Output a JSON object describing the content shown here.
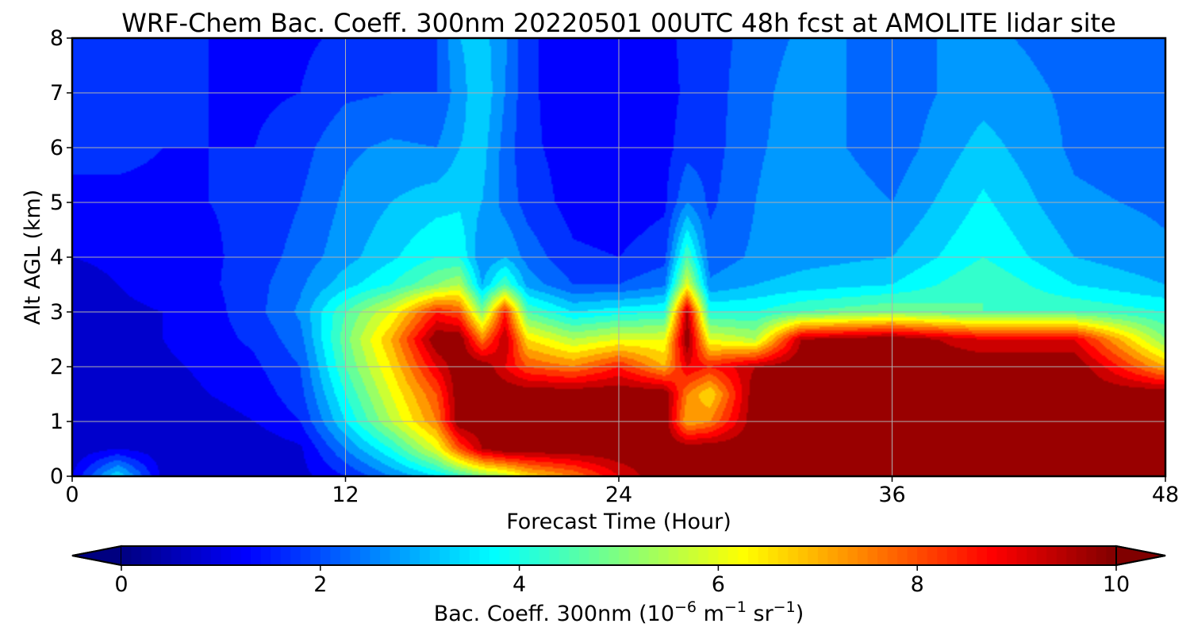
{
  "chart_data": {
    "type": "heatmap",
    "title": "WRF-Chem Bac. Coeff. 300nm  20220501 00UTC 48h fcst at AMOLITE lidar site",
    "xlabel": "Forecast Time (Hour)",
    "ylabel": "Alt AGL (km)",
    "xlim": [
      0,
      48
    ],
    "ylim": [
      0,
      8
    ],
    "xticks": [
      0,
      12,
      24,
      36,
      48
    ],
    "yticks": [
      0,
      1,
      2,
      3,
      4,
      5,
      6,
      7,
      8
    ],
    "grid": true,
    "colormap": "jet",
    "colorbar": {
      "label_main": "Bac. Coeff. 300nm  (10",
      "label_exp1": "−6",
      "label_mid": " m",
      "label_exp2": "−1",
      "label_end": " sr",
      "label_exp3": "−1",
      "label_close": ")",
      "range": [
        0,
        10
      ],
      "ticks": [
        0,
        2,
        4,
        6,
        8,
        10
      ],
      "extend": "both"
    },
    "x": [
      0,
      2,
      4,
      6,
      8,
      10,
      12,
      14,
      16,
      17,
      18,
      19,
      20,
      22,
      24,
      26,
      27,
      28,
      30,
      32,
      36,
      40,
      44,
      48
    ],
    "y": [
      0,
      0.5,
      1,
      1.5,
      2,
      2.5,
      3,
      3.5,
      4,
      5,
      6,
      7,
      8
    ],
    "z": [
      [
        1.0,
        3.5,
        0.8,
        0.6,
        0.5,
        0.8,
        1.5,
        2.5,
        3.5,
        4.2,
        5.0,
        5.5,
        6.5,
        7.5,
        9.0,
        10,
        10,
        10,
        10,
        10,
        10,
        10,
        10,
        10
      ],
      [
        0.6,
        1.0,
        0.7,
        0.6,
        0.6,
        0.9,
        2.5,
        4.0,
        6.0,
        8.0,
        9.5,
        10,
        10,
        10,
        10,
        10,
        10,
        10,
        10,
        10,
        10,
        10,
        10,
        10
      ],
      [
        0.8,
        0.9,
        0.7,
        0.8,
        1.0,
        1.5,
        3.5,
        5.5,
        7.5,
        10,
        10,
        10,
        10,
        10,
        10,
        10,
        7.0,
        7.5,
        10,
        10,
        10,
        10,
        10,
        10
      ],
      [
        0.7,
        0.9,
        0.8,
        1.0,
        1.2,
        1.8,
        4.0,
        6.0,
        8.0,
        10,
        10,
        10,
        10,
        10,
        10,
        10,
        7.5,
        6.5,
        10,
        10,
        10,
        10,
        10,
        10
      ],
      [
        0.6,
        0.9,
        0.9,
        1.1,
        1.4,
        2.0,
        4.5,
        6.5,
        9.0,
        10,
        10,
        9.0,
        8.0,
        7.5,
        8.5,
        7.0,
        9.0,
        8.5,
        9.5,
        10,
        10,
        10,
        10,
        7.0
      ],
      [
        0.6,
        0.9,
        1.0,
        1.3,
        1.6,
        2.3,
        4.8,
        7.0,
        10,
        10,
        7.5,
        9.5,
        6.5,
        5.5,
        6.0,
        6.0,
        10,
        6.0,
        5.5,
        9.5,
        10,
        9.0,
        9.0,
        5.0
      ],
      [
        0.6,
        0.9,
        1.0,
        1.3,
        1.8,
        2.6,
        4.5,
        6.0,
        8.5,
        8.0,
        5.0,
        8.5,
        4.5,
        3.5,
        3.8,
        4.0,
        9.5,
        4.0,
        4.0,
        4.5,
        5.0,
        4.5,
        4.5,
        4.0
      ],
      [
        0.8,
        1.0,
        1.2,
        1.4,
        1.8,
        2.4,
        3.3,
        4.0,
        5.0,
        5.5,
        3.0,
        4.5,
        2.8,
        2.0,
        2.0,
        2.4,
        6.0,
        2.6,
        3.0,
        3.2,
        3.5,
        4.5,
        3.5,
        3.0
      ],
      [
        1.0,
        1.1,
        1.2,
        1.4,
        1.7,
        2.2,
        2.8,
        3.4,
        4.0,
        4.0,
        2.5,
        3.0,
        2.3,
        1.6,
        1.5,
        1.8,
        4.5,
        2.2,
        2.6,
        2.8,
        3.0,
        4.0,
        3.0,
        2.6
      ],
      [
        1.4,
        1.4,
        1.4,
        1.5,
        1.6,
        2.0,
        2.6,
        3.0,
        3.3,
        3.4,
        3.0,
        2.3,
        1.8,
        1.3,
        1.2,
        1.4,
        2.5,
        1.9,
        2.5,
        3.0,
        2.5,
        3.6,
        2.6,
        2.4
      ],
      [
        1.6,
        1.6,
        1.5,
        1.5,
        1.5,
        1.8,
        2.4,
        2.6,
        2.5,
        3.0,
        3.2,
        2.3,
        1.6,
        1.3,
        1.1,
        1.3,
        1.8,
        1.8,
        2.4,
        2.8,
        2.2,
        3.2,
        2.4,
        2.2
      ],
      [
        1.8,
        1.6,
        1.5,
        1.5,
        1.4,
        1.5,
        1.9,
        2.0,
        2.0,
        2.8,
        3.4,
        2.5,
        1.6,
        1.2,
        1.1,
        1.3,
        1.6,
        1.8,
        2.3,
        2.8,
        2.2,
        2.8,
        2.4,
        2.1
      ],
      [
        2.0,
        1.8,
        1.6,
        1.5,
        1.4,
        1.4,
        1.6,
        1.8,
        2.0,
        3.0,
        3.2,
        2.6,
        1.6,
        1.2,
        1.1,
        1.4,
        1.6,
        1.8,
        2.2,
        2.6,
        2.4,
        2.6,
        2.3,
        2.0
      ]
    ]
  }
}
